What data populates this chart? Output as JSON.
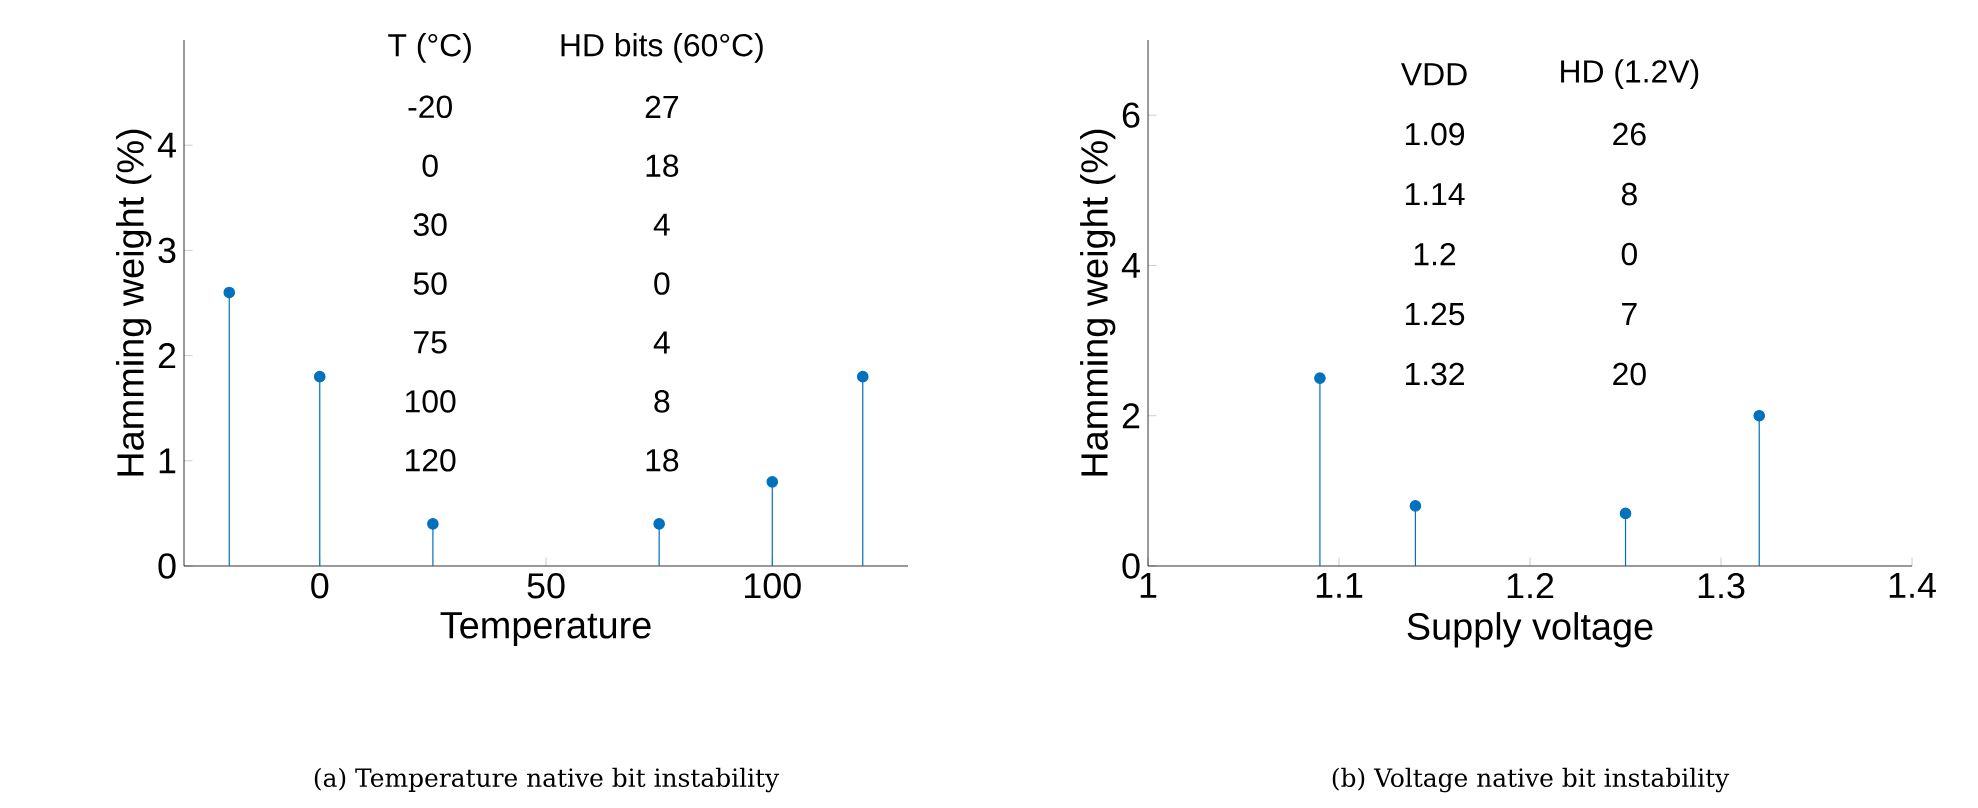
{
  "chart_data": [
    {
      "type": "lollipop",
      "title": "(a)  Temperature native bit instability",
      "xlabel": "Temperature",
      "ylabel": "Hamming weight (%)",
      "x": [
        -20,
        0,
        25,
        75,
        100,
        120
      ],
      "series": [
        {
          "color": "#0072bd",
          "values": [
            2.6,
            1.8,
            0.4,
            0.4,
            0.8,
            1.8
          ]
        }
      ],
      "marker": "circle",
      "xlim": [
        -30,
        130
      ],
      "ylim": [
        0,
        5
      ],
      "xticks": [
        0,
        50,
        100
      ],
      "yticks": [
        0,
        1,
        2,
        3,
        4
      ],
      "annotations": [
        "T (°C)",
        "HD bits (60°C)",
        "-20",
        "27",
        "0",
        "18",
        "30",
        "4",
        "50",
        "0",
        "75",
        "4",
        "100",
        "8",
        "120",
        "18"
      ]
    },
    {
      "type": "lollipop",
      "title": "(b)  Voltage native bit instability",
      "xlabel": "Supply voltage",
      "ylabel": "Hamming weight (%)",
      "x": [
        1.09,
        1.14,
        1.25,
        1.32
      ],
      "series": [
        {
          "color": "#0072bd",
          "values": [
            2.5,
            0.8,
            0.7,
            2.0
          ]
        }
      ],
      "marker": "circle",
      "xlim": [
        1,
        1.4
      ],
      "ylim": [
        0,
        7
      ],
      "xticks": [
        1,
        1.1,
        1.2,
        1.3,
        1.4
      ],
      "yticks": [
        0,
        2,
        4,
        6
      ],
      "annotations": [
        "VDD",
        "HD (1.2V)",
        "1.09",
        "26",
        "1.14",
        "8",
        "1.2",
        "0",
        "1.25",
        "7",
        "1.32",
        "20"
      ]
    }
  ]
}
